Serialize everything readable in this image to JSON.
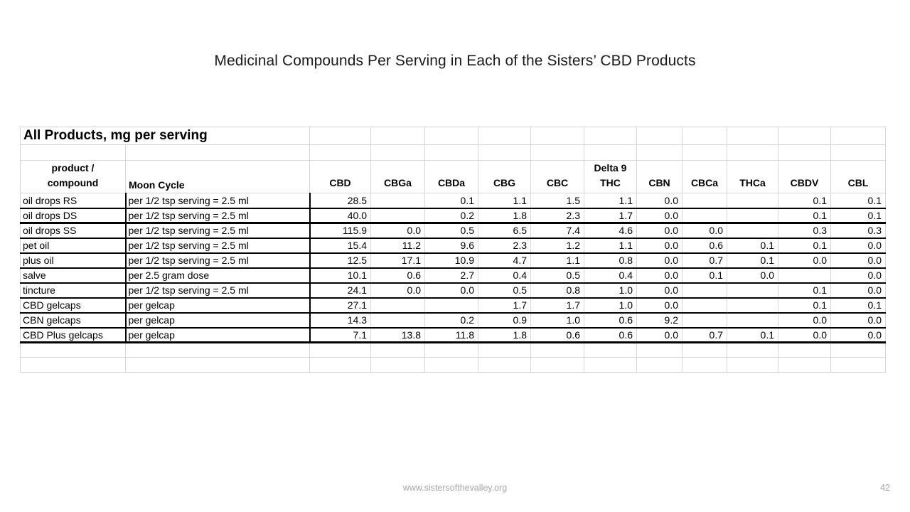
{
  "slide": {
    "title": "Medicinal Compounds Per Serving in Each of the Sisters’ CBD Products",
    "footer_url": "www.sistersofthevalley.org",
    "page_number": "42"
  },
  "table": {
    "title": "All Products, mg per serving",
    "product_header": [
      "product /",
      "compound"
    ],
    "moon_cycle_header": "Moon Cycle",
    "columns": [
      {
        "top": "",
        "label": "CBD"
      },
      {
        "top": "",
        "label": "CBGa"
      },
      {
        "top": "",
        "label": "CBDa"
      },
      {
        "top": "",
        "label": "CBG"
      },
      {
        "top": "",
        "label": "CBC"
      },
      {
        "top": "Delta 9",
        "label": "THC"
      },
      {
        "top": "",
        "label": "CBN"
      },
      {
        "top": "",
        "label": "CBCa"
      },
      {
        "top": "",
        "label": "THCa"
      },
      {
        "top": "",
        "label": "CBDV"
      },
      {
        "top": "",
        "label": "CBL"
      }
    ],
    "rows": [
      {
        "product": "oil drops RS",
        "serving": "per 1/2 tsp serving = 2.5 ml",
        "values": [
          "28.5",
          "",
          "0.1",
          "1.1",
          "1.5",
          "1.1",
          "0.0",
          "",
          "",
          "0.1",
          "0.1"
        ]
      },
      {
        "product": "oil drops DS",
        "serving": "per 1/2 tsp serving = 2.5 ml",
        "values": [
          "40.0",
          "",
          "0.2",
          "1.8",
          "2.3",
          "1.7",
          "0.0",
          "",
          "",
          "0.1",
          "0.1"
        ]
      },
      {
        "product": "oil drops SS",
        "serving": "per 1/2 tsp serving = 2.5 ml",
        "values": [
          "115.9",
          "0.0",
          "0.5",
          "6.5",
          "7.4",
          "4.6",
          "0.0",
          "0.0",
          "",
          "0.3",
          "0.3"
        ]
      },
      {
        "product": "pet oil",
        "serving": "per 1/2 tsp serving = 2.5 ml",
        "values": [
          "15.4",
          "11.2",
          "9.6",
          "2.3",
          "1.2",
          "1.1",
          "0.0",
          "0.6",
          "0.1",
          "0.1",
          "0.0"
        ]
      },
      {
        "product": "plus oil",
        "serving": "per 1/2 tsp serving = 2.5 ml",
        "values": [
          "12.5",
          "17.1",
          "10.9",
          "4.7",
          "1.1",
          "0.8",
          "0.0",
          "0.7",
          "0.1",
          "0.0",
          "0.0"
        ]
      },
      {
        "product": "salve",
        "serving": "per 2.5 gram dose",
        "values": [
          "10.1",
          "0.6",
          "2.7",
          "0.4",
          "0.5",
          "0.4",
          "0.0",
          "0.1",
          "0.0",
          "",
          "0.0"
        ]
      },
      {
        "product": "tincture",
        "serving": "per 1/2 tsp serving = 2.5 ml",
        "values": [
          "24.1",
          "0.0",
          "0.0",
          "0.5",
          "0.8",
          "1.0",
          "0.0",
          "",
          "",
          "0.1",
          "0.0"
        ]
      },
      {
        "product": "CBD gelcaps",
        "serving": "per gelcap",
        "values": [
          "27.1",
          "",
          "",
          "1.7",
          "1.7",
          "1.0",
          "0.0",
          "",
          "",
          "0.1",
          "0.1"
        ]
      },
      {
        "product": "CBN gelcaps",
        "serving": "per gelcap",
        "values": [
          "14.3",
          "",
          "0.2",
          "0.9",
          "1.0",
          "0.6",
          "9.2",
          "",
          "",
          "0.0",
          "0.0"
        ]
      },
      {
        "product": "CBD Plus gelcaps",
        "serving": "per gelcap",
        "values": [
          "7.1",
          "13.8",
          "11.8",
          "1.8",
          "0.6",
          "0.6",
          "0.0",
          "0.7",
          "0.1",
          "0.0",
          "0.0"
        ]
      }
    ]
  }
}
